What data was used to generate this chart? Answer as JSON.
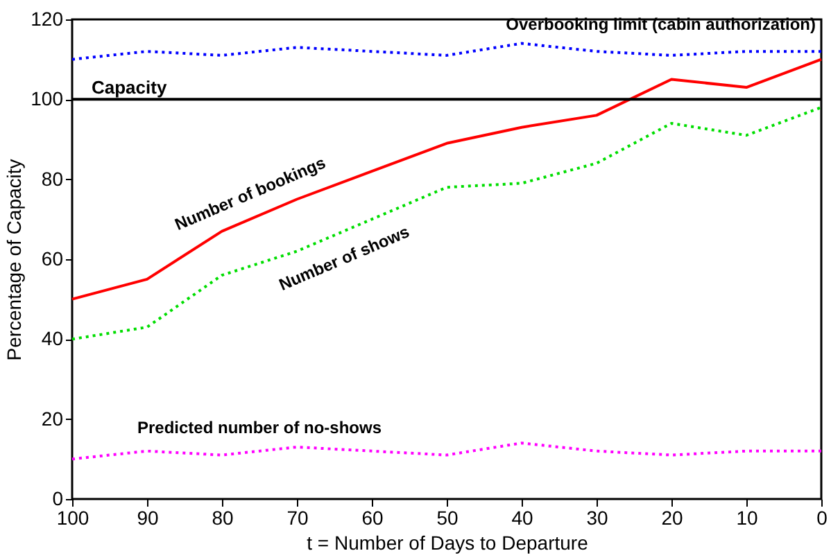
{
  "chart_data": {
    "type": "line",
    "xlabel": "t = Number of Days to Departure",
    "ylabel": "Percentage of Capacity",
    "x": [
      100,
      90,
      80,
      70,
      60,
      50,
      40,
      30,
      20,
      10,
      0
    ],
    "series": [
      {
        "name": "Overbooking limit (cabin authorization)",
        "color": "#0000ff",
        "line_style": "dotted",
        "values": [
          110,
          112,
          111,
          113,
          112,
          111,
          114,
          112,
          111,
          112,
          112
        ]
      },
      {
        "name": "Number of bookings",
        "color": "#ff0000",
        "line_style": "solid",
        "values": [
          50,
          55,
          67,
          75,
          82,
          89,
          93,
          96,
          105,
          103,
          110
        ]
      },
      {
        "name": "Number of shows",
        "color": "#00dd00",
        "line_style": "dotted",
        "values": [
          40,
          43,
          56,
          62,
          70,
          78,
          79,
          84,
          94,
          91,
          98
        ]
      },
      {
        "name": "Predicted number of no-shows",
        "color": "#ff00ff",
        "line_style": "dotted",
        "values": [
          10,
          12,
          11,
          13,
          12,
          11,
          14,
          12,
          11,
          12,
          12
        ]
      }
    ],
    "ref_lines": [
      {
        "axis": "y",
        "value": 100,
        "label": "Capacity",
        "color": "#000000",
        "line_style": "solid"
      }
    ],
    "xlim": [
      100,
      0
    ],
    "xticks": [
      100,
      90,
      80,
      70,
      60,
      50,
      40,
      30,
      20,
      10,
      0
    ],
    "ylim": [
      0,
      120
    ],
    "yticks": [
      0,
      20,
      40,
      60,
      80,
      100,
      120
    ],
    "grid": false,
    "marker": "none"
  }
}
